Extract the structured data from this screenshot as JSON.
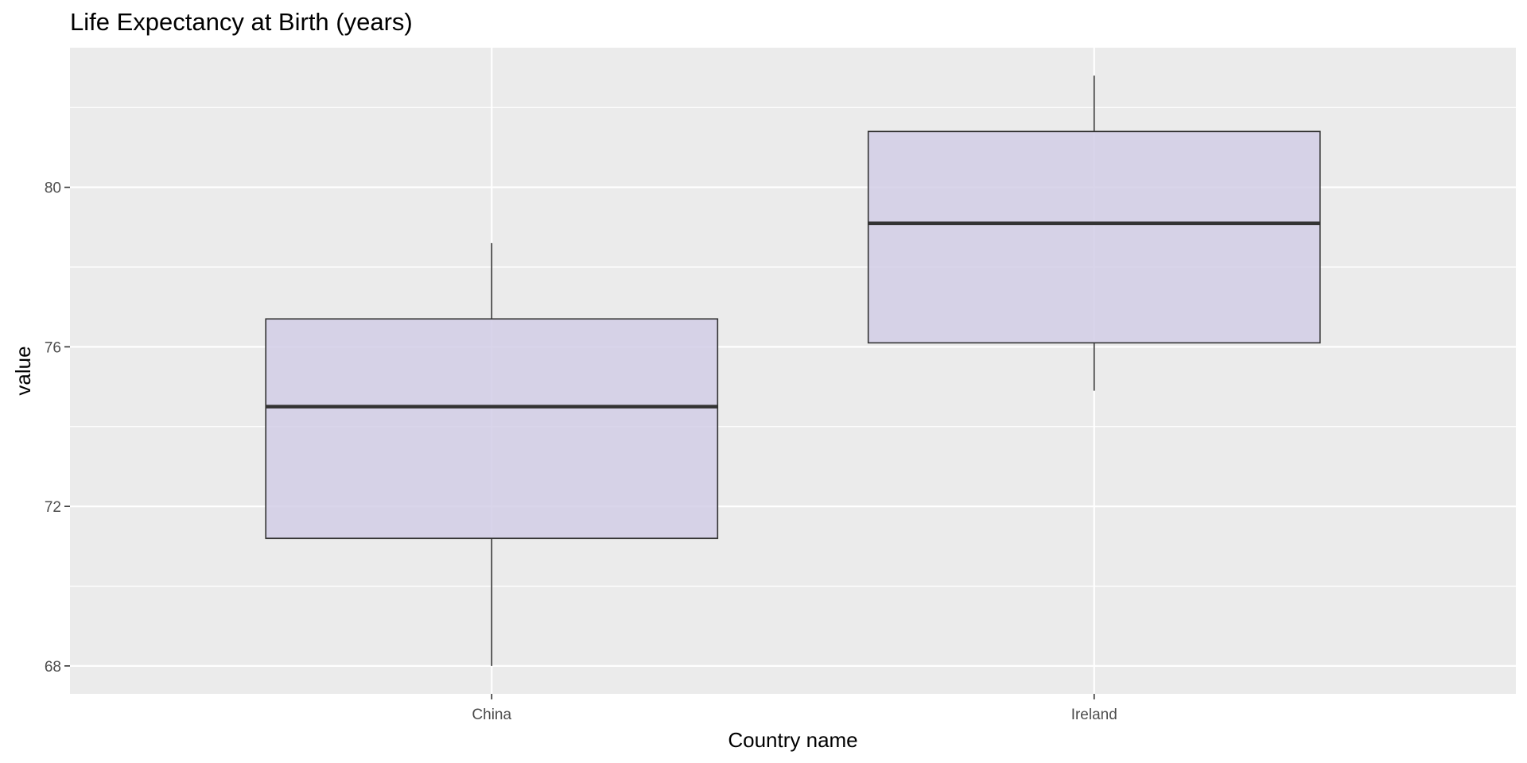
{
  "chart_data": {
    "type": "boxplot",
    "title": "Life Expectancy at Birth (years)",
    "xlabel": "Country name",
    "ylabel": "value",
    "categories": [
      "China",
      "Ireland"
    ],
    "boxes": [
      {
        "category": "China",
        "min": 68.0,
        "q1": 71.2,
        "median": 74.5,
        "q3": 76.7,
        "max": 78.6
      },
      {
        "category": "Ireland",
        "min": 74.9,
        "q1": 76.1,
        "median": 79.1,
        "q3": 81.4,
        "max": 82.8
      }
    ],
    "ylim": [
      67.3,
      83.5
    ],
    "yticks": [
      68,
      72,
      76,
      80
    ],
    "y_minor_ticks": [
      70,
      74,
      78,
      82
    ],
    "grid": true,
    "panel_background": "#ebebeb",
    "grid_color": "#ffffff",
    "box_fill": "#d2cee6",
    "box_stroke": "#333333"
  }
}
